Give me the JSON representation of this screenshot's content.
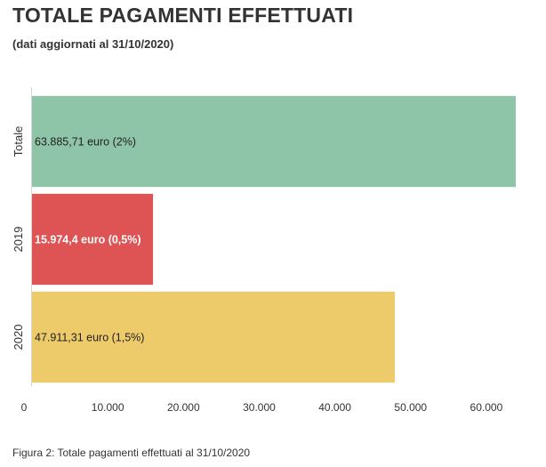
{
  "title": "TOTALE PAGAMENTI EFFETTUATI",
  "subtitle": "(dati aggiornati al 31/10/2020)",
  "caption": "Figura 2: Totale pagamenti effettuati al 31/10/2020",
  "chart_data": {
    "type": "bar",
    "orientation": "horizontal",
    "categories": [
      "Totale",
      "2019",
      "2020"
    ],
    "values": [
      63885.71,
      15974.4,
      47911.31
    ],
    "data_labels": [
      "63.885,71 euro (2%)",
      "15.974,4 euro (0,5%)",
      "47.911,31 euro (1,5%)"
    ],
    "colors": [
      "#8ec5a8",
      "#de5354",
      "#eecb6a"
    ],
    "label_colors": [
      "#222222",
      "#ffffff",
      "#222222"
    ],
    "label_bold": [
      false,
      true,
      false
    ],
    "xlim": [
      0,
      66000
    ],
    "x_ticks": [
      0,
      10000,
      20000,
      30000,
      40000,
      50000,
      60000
    ],
    "x_tick_labels": [
      "0",
      "10.000",
      "20.000",
      "30.000",
      "40.000",
      "50.000",
      "60.000"
    ],
    "grid": false,
    "legend": "none"
  }
}
